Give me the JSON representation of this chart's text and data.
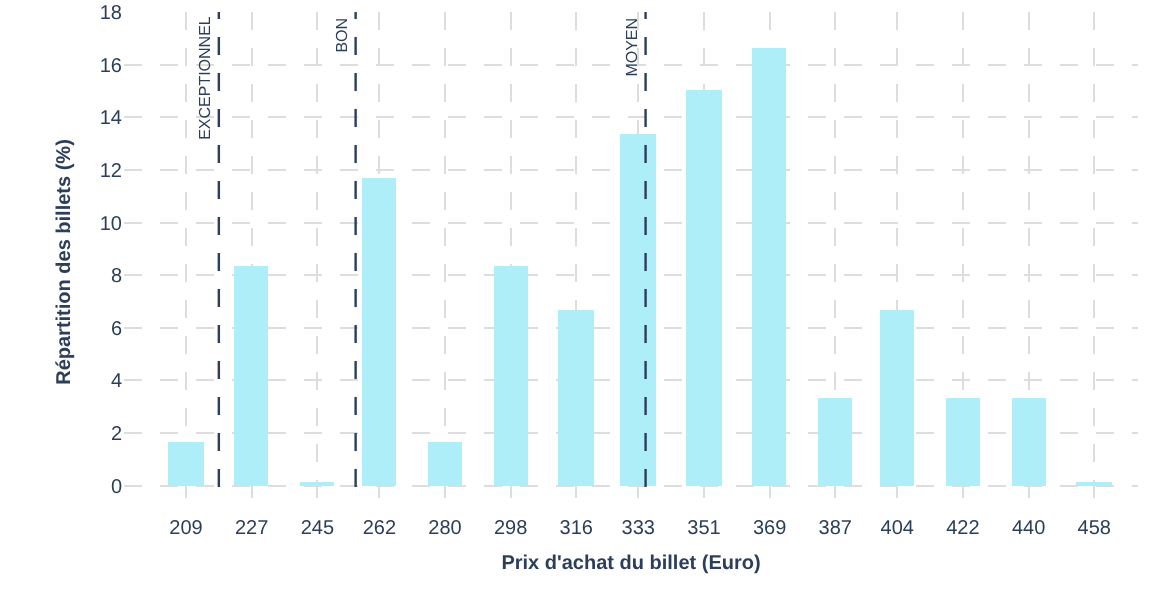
{
  "chart_data": {
    "type": "bar",
    "xlabel": "Prix d'achat du billet (Euro)",
    "ylabel": "Répartition des billets (%)",
    "x": [
      209,
      227,
      245,
      262,
      280,
      298,
      316,
      333,
      351,
      369,
      387,
      404,
      422,
      440,
      458
    ],
    "values": [
      1.67,
      8.33,
      0.1,
      11.67,
      1.67,
      8.33,
      6.67,
      13.33,
      15,
      16.67,
      3.33,
      6.67,
      3.33,
      3.33,
      0.1
    ],
    "color": "#aeeef8",
    "xlim": [
      192,
      470
    ],
    "xticks": [
      209,
      227,
      245,
      262,
      280,
      298,
      316,
      333,
      351,
      369,
      387,
      404,
      422,
      440,
      458
    ],
    "ylim": [
      -1,
      18
    ],
    "yticks": [
      0,
      2,
      4,
      6,
      8,
      10,
      12,
      14,
      16,
      18
    ],
    "grid": true,
    "ref_lines": [
      {
        "axis": "x",
        "value": 218,
        "label": "EXCEPTIONNEL",
        "color": "#2c3e5a",
        "line_style": "dashed"
      },
      {
        "axis": "x",
        "value": 255.5,
        "label": "BON",
        "color": "#2c3e5a",
        "line_style": "dashed"
      },
      {
        "axis": "x",
        "value": 335,
        "label": "MOYEN",
        "color": "#2c3e5a",
        "line_style": "dashed"
      }
    ]
  }
}
